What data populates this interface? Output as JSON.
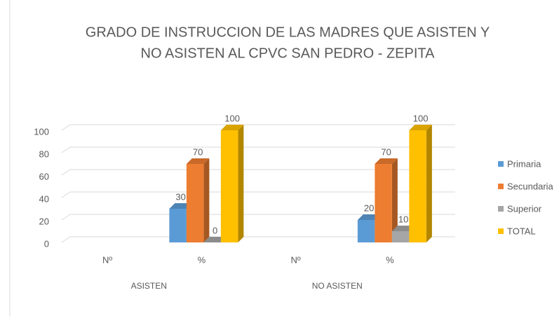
{
  "chart_data": {
    "type": "bar3d",
    "title": [
      "GRADO DE INSTRUCCION DE LAS MADRES QUE ASISTEN Y",
      "NO ASISTEN AL CPVC SAN PEDRO -  ZEPITA"
    ],
    "categories": [
      "Nº",
      "%",
      "Nº",
      "%"
    ],
    "group_labels": [
      "ASISTEN",
      "NO ASISTEN"
    ],
    "series": [
      {
        "name": "Primaria",
        "color": "#5b9bd5",
        "values": [
          null,
          30,
          null,
          20
        ]
      },
      {
        "name": "Secundaria",
        "color": "#ed7d31",
        "values": [
          null,
          70,
          null,
          70
        ]
      },
      {
        "name": "Superior",
        "color": "#a5a5a5",
        "values": [
          null,
          0,
          null,
          10
        ]
      },
      {
        "name": "TOTAL",
        "color": "#ffc000",
        "values": [
          null,
          100,
          null,
          100
        ]
      }
    ],
    "ylim": [
      0,
      100
    ],
    "yticks": [
      0,
      20,
      40,
      60,
      80,
      100
    ],
    "grid": true,
    "legend": "right"
  }
}
